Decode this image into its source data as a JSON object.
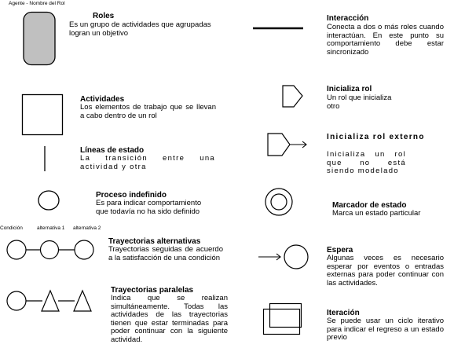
{
  "header": {
    "label": "Agente - Nombre del Rol"
  },
  "left": [
    {
      "key": "roles",
      "icon": "rounded-rectangle-icon",
      "title": "Roles",
      "desc": "Es un grupo de actividades que agrupadas logran un objetivo"
    },
    {
      "key": "actividades",
      "icon": "square-icon",
      "title": "Actividades",
      "desc": "Los elementos de trabajo que se llevan a cabo dentro de un rol"
    },
    {
      "key": "lineas",
      "icon": "vertical-line-icon",
      "title": "Líneas de estado",
      "desc": "La transición entre una actividad y otra"
    },
    {
      "key": "proceso",
      "icon": "ellipse-icon",
      "title": "Proceso indefinido",
      "desc": "Es para indicar comportamiento que todavía no ha sido definido"
    },
    {
      "key": "alternativas",
      "icon": "three-circles-chain-icon",
      "title": "Trayectorias alternativas",
      "desc": "Trayectorias seguidas de acuerdo a la satisfacción de una condición"
    },
    {
      "key": "paralelas",
      "icon": "circle-triangles-chain-icon",
      "title": "Trayectorias paralelas",
      "desc": "Indica que se realizan simultáneamente. Todas las actividades de las trayectorias tienen que estar terminadas para poder continuar con la siguiente actividad."
    }
  ],
  "right": [
    {
      "key": "interaccion",
      "icon": "thick-line-icon",
      "title": "Interacción",
      "desc": "Conecta a dos o más roles cuando interactúan. En este punto su comportamiento debe estar sincronizado"
    },
    {
      "key": "inicializa",
      "icon": "pentagon-arrow-icon",
      "title": "Inicializa rol",
      "desc": "Un rol que inicializa otro"
    },
    {
      "key": "externo",
      "icon": "pentagon-arrow-external-icon",
      "title": "Inicializa rol externo",
      "desc": "Inicializa un rol que no está siendo modelado"
    },
    {
      "key": "marcador",
      "icon": "double-circle-icon",
      "title": "Marcador de estado",
      "desc": "Marca un estado particular"
    },
    {
      "key": "espera",
      "icon": "arrow-to-circle-icon",
      "title": "Espera",
      "desc": "Algunas veces es necesario esperar por eventos o entradas externas para poder continuar con las actividades."
    },
    {
      "key": "iteracion",
      "icon": "overlapping-rectangles-icon",
      "title": "Iteración",
      "desc": "Se puede usar un ciclo iterativo para indicar el regreso a un estado previo"
    }
  ],
  "captions": {
    "condicion": "Condición",
    "alt1": "alternativa 1",
    "alt2": "alternativa 2"
  }
}
